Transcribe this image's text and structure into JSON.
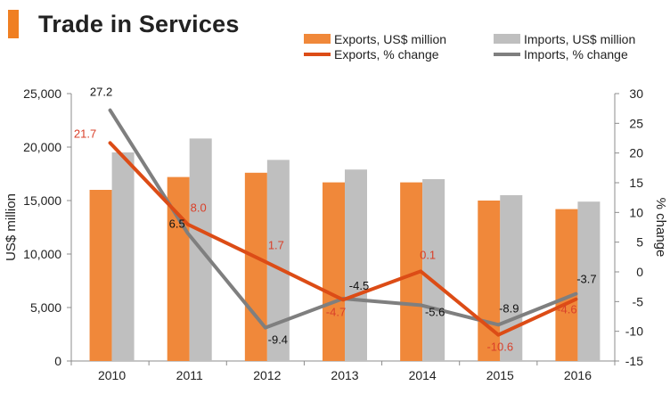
{
  "chart_data": {
    "type": "bar+line",
    "title": "Trade in Services",
    "categories": [
      "2010",
      "2011",
      "2012",
      "2013",
      "2014",
      "2015",
      "2016"
    ],
    "series": [
      {
        "name": "Exports, US$ million",
        "kind": "bar",
        "axis": "left",
        "color": "#f0883a",
        "values": [
          16000,
          17200,
          17600,
          16700,
          16700,
          15000,
          14200
        ]
      },
      {
        "name": "Imports, US$ million",
        "kind": "bar",
        "axis": "left",
        "color": "#bfbfbf",
        "values": [
          19500,
          20800,
          18800,
          17900,
          17000,
          15500,
          14900
        ]
      },
      {
        "name": "Exports, % change",
        "kind": "line",
        "axis": "right",
        "color": "#dc4c16",
        "label_color": "#d9402a",
        "values": [
          21.7,
          8.0,
          1.7,
          -4.7,
          0.1,
          -10.6,
          -4.6
        ],
        "labels": [
          "21.7",
          "8.0",
          "1.7",
          "-4.7",
          "0.1",
          "-10.6",
          "-4.6"
        ]
      },
      {
        "name": "Imports, % change",
        "kind": "line",
        "axis": "right",
        "color": "#7f7f7f",
        "label_color": "#111111",
        "values": [
          27.2,
          6.5,
          -9.4,
          -4.5,
          -5.6,
          -8.9,
          -3.7
        ],
        "labels": [
          "27.2",
          "6.5",
          "-9.4",
          "-4.5",
          "-5.6",
          "-8.9",
          "-3.7"
        ]
      }
    ],
    "ylabel": "US$ million",
    "ylabel_right": "% change",
    "ylim": [
      0,
      25000
    ],
    "yticks": [
      0,
      5000,
      10000,
      15000,
      20000,
      25000
    ],
    "ytick_labels": [
      "0",
      "5,000",
      "10,000",
      "15,000",
      "20,000",
      "25,000"
    ],
    "y2lim": [
      -15,
      30
    ],
    "y2ticks": [
      -15,
      -10,
      -5,
      0,
      5,
      10,
      15,
      20,
      25,
      30
    ],
    "y2tick_labels": [
      "-15",
      "-10",
      "-5",
      "0",
      "5",
      "10",
      "15",
      "20",
      "25",
      "30"
    ],
    "legend": "top-right",
    "grid": false
  }
}
